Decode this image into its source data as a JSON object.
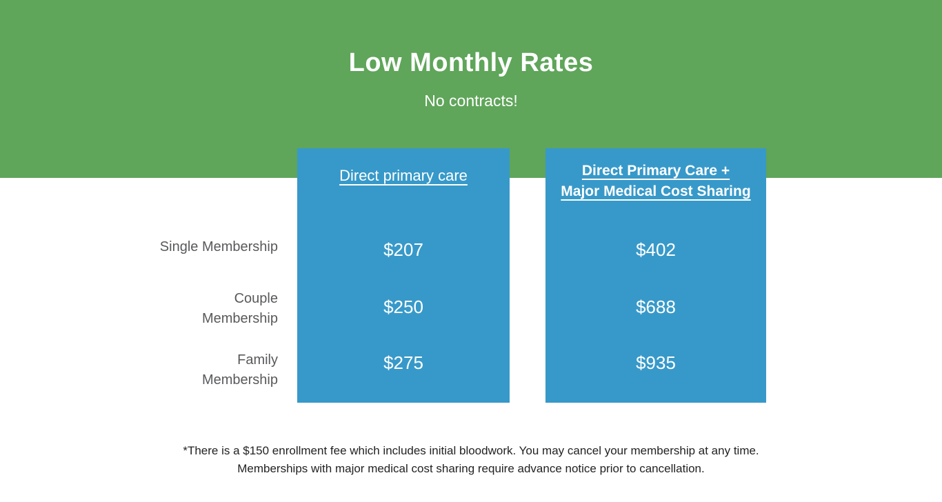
{
  "banner": {
    "title": "Low Monthly Rates",
    "subtitle": "No contracts!",
    "bg_color": "#5FA55A",
    "text_color": "#ffffff"
  },
  "table": {
    "accent_color": "#3799C9",
    "label_color": "#58595B",
    "columns": [
      {
        "label": "Direct primary care"
      },
      {
        "label": "Direct Primary Care +\nMajor Medical Cost Sharing"
      }
    ],
    "rows": [
      {
        "label": "Single Membership",
        "dpc_price": "$207",
        "dpc_mm_price": "$402"
      },
      {
        "label": "Couple\nMembership",
        "dpc_price": "$250",
        "dpc_mm_price": "$688"
      },
      {
        "label": "Family\nMembership",
        "dpc_price": "$275",
        "dpc_mm_price": "$935"
      }
    ]
  },
  "footer": {
    "line1": "*There is a $150 enrollment fee which includes initial bloodwork. You may cancel your membership at any time.",
    "line2": "Memberships with major medical cost sharing require advance notice prior to cancellation."
  }
}
